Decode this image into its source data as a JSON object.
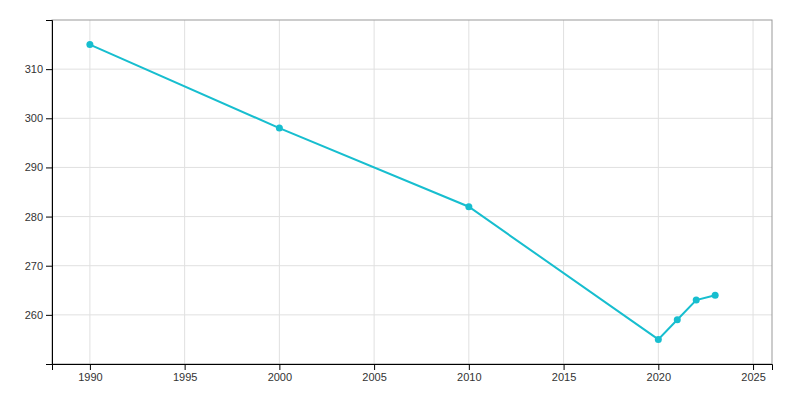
{
  "chart_data": {
    "type": "line",
    "x": [
      1990,
      2000,
      2010,
      2020,
      2021,
      2022,
      2023
    ],
    "values": [
      315,
      298,
      282,
      255,
      259,
      263,
      264
    ],
    "color": "#17becf",
    "marker": "circle",
    "xlim": [
      1988,
      2026
    ],
    "ylim": [
      250,
      320
    ],
    "xticks": [
      1990,
      1995,
      2000,
      2005,
      2010,
      2015,
      2020,
      2025
    ],
    "yticks": [
      260,
      270,
      280,
      290,
      300,
      310
    ],
    "grid": true
  }
}
